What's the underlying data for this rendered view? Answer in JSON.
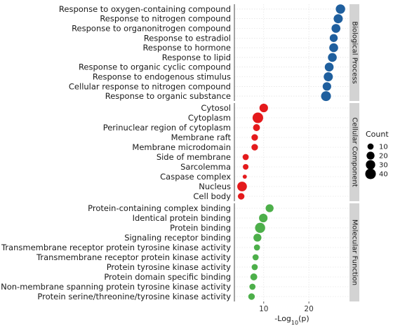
{
  "chart_data": {
    "type": "scatter",
    "xlabel_main": "-Log",
    "xlabel_sub": "10",
    "xlabel_tail": "(p)",
    "x_ticks": [
      10,
      20
    ],
    "xlim": [
      3.5,
      29
    ],
    "grid": true,
    "legend": {
      "title": "Count",
      "placement": "right",
      "entries": [
        {
          "label": "10",
          "value": 10
        },
        {
          "label": "20",
          "value": 20
        },
        {
          "label": "30",
          "value": 30
        },
        {
          "label": "40",
          "value": 40
        }
      ]
    },
    "panels": [
      {
        "name": "Biological Process",
        "color": "#1f5f9e",
        "terms": [
          {
            "term": "Response to oxygen-containing compound",
            "x": 27.0,
            "count": 30
          },
          {
            "term": "Response to nitrogen compound",
            "x": 26.5,
            "count": 28
          },
          {
            "term": "Response to organonitrogen compound",
            "x": 26.0,
            "count": 26
          },
          {
            "term": "Response to estradiol",
            "x": 25.5,
            "count": 20
          },
          {
            "term": "Response to hormone",
            "x": 25.5,
            "count": 26
          },
          {
            "term": "Response to lipid",
            "x": 25.2,
            "count": 26
          },
          {
            "term": "Response to organic cyclic compound",
            "x": 24.5,
            "count": 26
          },
          {
            "term": "Response to endogenous stimulus",
            "x": 24.3,
            "count": 28
          },
          {
            "term": "Cellular response to nitrogen compound",
            "x": 24.0,
            "count": 24
          },
          {
            "term": "Response to organic substance",
            "x": 23.8,
            "count": 34
          }
        ]
      },
      {
        "name": "Cellular Component",
        "color": "#e41a1c",
        "terms": [
          {
            "term": "Cytosol",
            "x": 10.0,
            "count": 24
          },
          {
            "term": "Cytoplasm",
            "x": 8.7,
            "count": 40
          },
          {
            "term": "Perinuclear region of cytoplasm",
            "x": 8.4,
            "count": 14
          },
          {
            "term": "Membrane raft",
            "x": 8.0,
            "count": 12
          },
          {
            "term": "Membrane microdomain",
            "x": 8.0,
            "count": 12
          },
          {
            "term": "Side of membrane",
            "x": 6.0,
            "count": 10
          },
          {
            "term": "Sarcolemma",
            "x": 6.0,
            "count": 8
          },
          {
            "term": "Caspase complex",
            "x": 5.8,
            "count": 3
          },
          {
            "term": "Nucleus",
            "x": 5.2,
            "count": 32
          },
          {
            "term": "Cell body",
            "x": 5.0,
            "count": 12
          }
        ]
      },
      {
        "name": "Molecular Function",
        "color": "#4daf4a",
        "terms": [
          {
            "term": "Protein-containing complex binding",
            "x": 11.3,
            "count": 20
          },
          {
            "term": "Identical protein binding",
            "x": 9.9,
            "count": 24
          },
          {
            "term": "Protein binding",
            "x": 9.2,
            "count": 36
          },
          {
            "term": "Signaling receptor binding",
            "x": 8.6,
            "count": 20
          },
          {
            "term": "Transmembrane receptor protein tyrosine kinase activity",
            "x": 8.5,
            "count": 10
          },
          {
            "term": "Transmembrane receptor protein kinase activity",
            "x": 8.2,
            "count": 10
          },
          {
            "term": "Protein tyrosine kinase activity",
            "x": 8.0,
            "count": 10
          },
          {
            "term": "Protein domain specific binding",
            "x": 7.8,
            "count": 14
          },
          {
            "term": "Non-membrane spanning protein tyrosine kinase activity",
            "x": 7.5,
            "count": 10
          },
          {
            "term": "Protein serine/threonine/tyrosine kinase activity",
            "x": 7.3,
            "count": 12
          }
        ]
      }
    ]
  }
}
